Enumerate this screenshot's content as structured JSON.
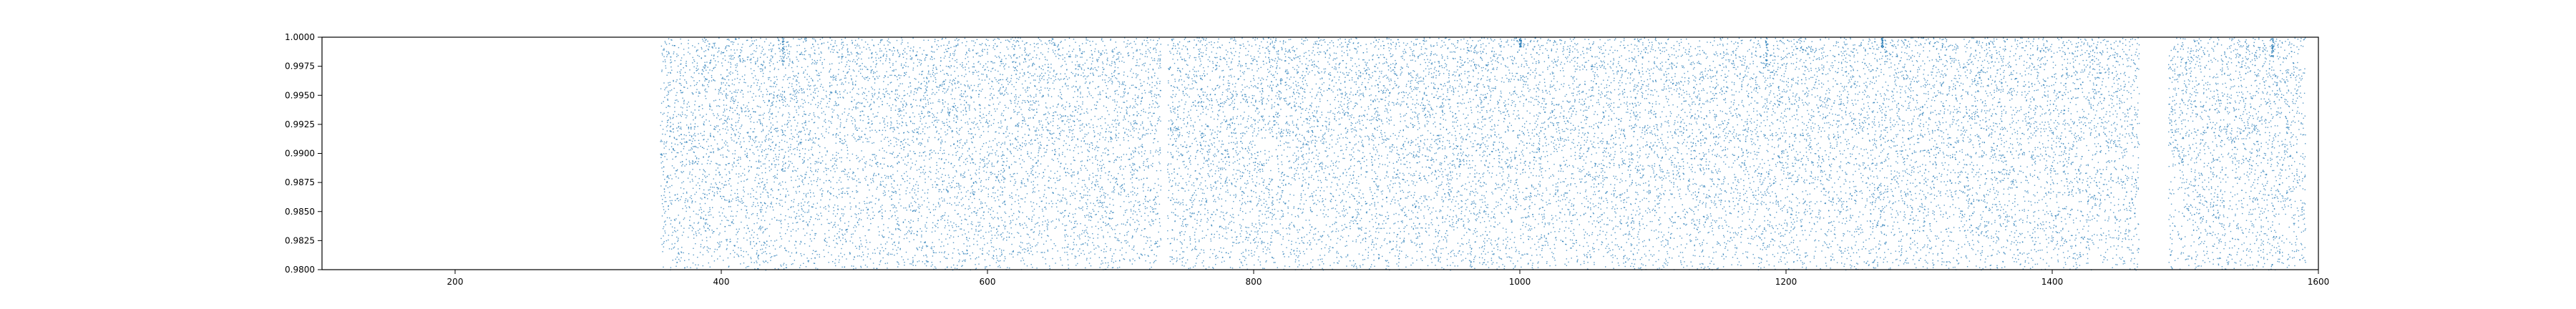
{
  "chart_data": {
    "type": "scatter",
    "title": "",
    "xlabel": "",
    "ylabel": "",
    "xlim": [
      100,
      1600
    ],
    "ylim": [
      0.98,
      1.0
    ],
    "grid": false,
    "legend": "none",
    "marker_color": "#1f77b4",
    "x_ticks": [
      200,
      400,
      600,
      800,
      1000,
      1200,
      1400,
      1600
    ],
    "x_tick_labels": [
      "200",
      "400",
      "600",
      "800",
      "1000",
      "1200",
      "1400",
      "1600"
    ],
    "y_ticks": [
      0.98,
      0.9825,
      0.985,
      0.9875,
      0.99,
      0.9925,
      0.995,
      0.9975,
      1.0
    ],
    "y_tick_labels": [
      "0.9800",
      "0.9825",
      "0.9850",
      "0.9875",
      "0.9900",
      "0.9925",
      "0.9950",
      "0.9975",
      "1.0000"
    ],
    "data_segments": [
      {
        "x_start": 354,
        "x_end": 730
      },
      {
        "x_start": 735,
        "x_end": 1465
      },
      {
        "x_start": 1487,
        "x_end": 1590
      }
    ],
    "dips": [
      {
        "x": 446,
        "min_y": 0.9975
      },
      {
        "x": 1000,
        "min_y": 0.9992
      },
      {
        "x": 1185,
        "min_y": 0.9972
      },
      {
        "x": 1272,
        "min_y": 0.9992
      },
      {
        "x": 1565,
        "min_y": 0.9982
      }
    ],
    "points_per_segment_unit": 20
  }
}
